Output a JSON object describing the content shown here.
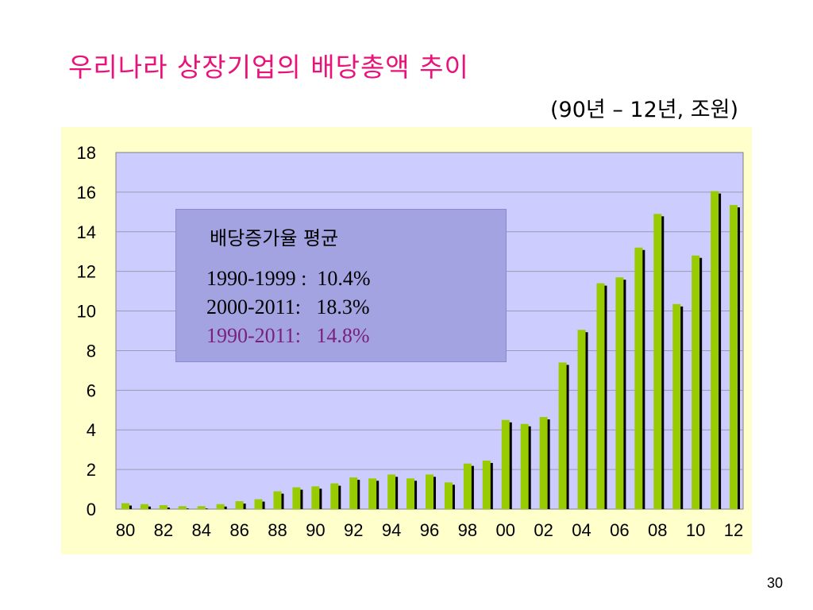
{
  "title": "우리나라 상장기업의 배당총액 추이",
  "subtitle": "(90년 – 12년, 조원)",
  "page_number": "30",
  "stats_box": {
    "heading": "배당증가율 평균",
    "lines": [
      {
        "text": "1990-1999 :  10.4%",
        "color": "#000000"
      },
      {
        "text": "2000-2011:   18.3%",
        "color": "#000000"
      },
      {
        "text": "1990-2011:   14.8%",
        "color": "#7a1f7a"
      }
    ]
  },
  "colors": {
    "bar": "#99cc00",
    "bar_shadow": "#000000",
    "plot_bg": "#ccccff",
    "frame_bg": "#ffffcc",
    "title": "#e8127a"
  },
  "chart_data": {
    "type": "bar",
    "title": "우리나라 상장기업의 배당총액 추이",
    "subtitle": "(90년 – 12년, 조원)",
    "xlabel": "",
    "ylabel": "",
    "ylim": [
      0,
      18
    ],
    "yticks": [
      0,
      2,
      4,
      6,
      8,
      10,
      12,
      14,
      16,
      18
    ],
    "grid": true,
    "categories": [
      "80",
      "81",
      "82",
      "83",
      "84",
      "85",
      "86",
      "87",
      "88",
      "89",
      "90",
      "91",
      "92",
      "93",
      "94",
      "95",
      "96",
      "97",
      "98",
      "99",
      "00",
      "01",
      "02",
      "03",
      "04",
      "05",
      "06",
      "07",
      "08",
      "09",
      "10",
      "11",
      "12"
    ],
    "xtick_labels": [
      "80",
      "82",
      "84",
      "86",
      "88",
      "90",
      "92",
      "94",
      "96",
      "98",
      "00",
      "02",
      "04",
      "06",
      "08",
      "10",
      "12"
    ],
    "values": [
      0.3,
      0.25,
      0.2,
      0.15,
      0.15,
      0.25,
      0.4,
      0.5,
      0.9,
      1.1,
      1.15,
      1.3,
      1.6,
      1.55,
      1.75,
      1.55,
      1.75,
      1.35,
      2.3,
      2.45,
      4.5,
      4.3,
      4.65,
      7.4,
      9.05,
      11.4,
      11.7,
      13.2,
      14.9,
      10.35,
      12.8,
      16.05,
      15.35
    ]
  }
}
